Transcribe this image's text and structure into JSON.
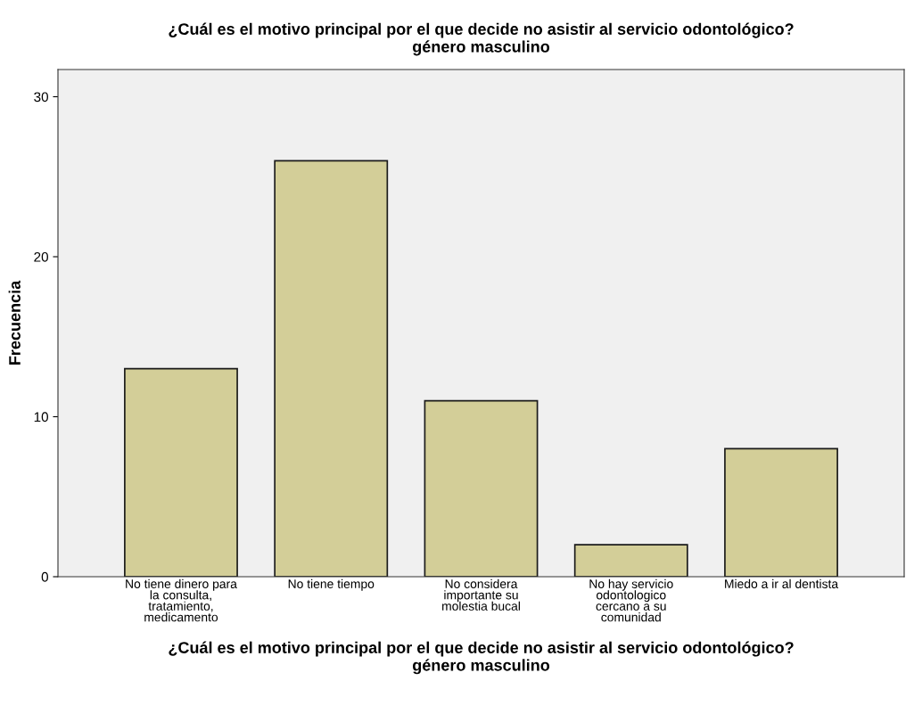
{
  "chart_data": {
    "type": "bar",
    "title": "¿Cuál es el motivo principal por el que decide no asistir al servicio odontológico?\ngénero masculino",
    "xlabel": "¿Cuál es el motivo principal por el que decide no asistir al servicio odontológico?\ngénero masculino",
    "ylabel": "Frecuencia",
    "categories": [
      "No tiene dinero para\nla consulta,\ntratamiento,\nmedicamento",
      "No tiene tiempo",
      "No considera\nimportante su\nmolestia bucal",
      "No hay servicio\nodontologico\ncercano a su\ncomunidad",
      "Miedo a ir al dentista"
    ],
    "values": [
      13,
      26,
      11,
      2,
      8
    ],
    "color": "#d3ce98",
    "ylim": [
      0,
      31.7
    ],
    "yticks": [
      0,
      10,
      20,
      30
    ],
    "grid": false
  }
}
